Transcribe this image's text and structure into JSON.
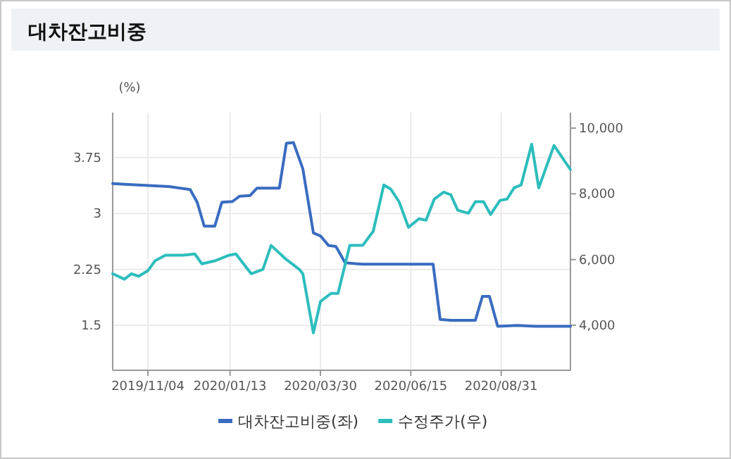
{
  "chart_data": {
    "type": "line",
    "title": "대차잔고비중",
    "ylabel": "(%)",
    "legend": "bottom",
    "grid": true,
    "marker": "none",
    "line_style": "solid",
    "xlim": [
      "2019-10-05",
      "2020-10-29"
    ],
    "xticks": [
      {
        "value": "2019-11-04",
        "label": "2019/11/04"
      },
      {
        "value": "2020-01-13",
        "label": "2020/01/13"
      },
      {
        "value": "2020-03-30",
        "label": "2020/03/30"
      },
      {
        "value": "2020-06-15",
        "label": "2020/06/15"
      },
      {
        "value": "2020-08-31",
        "label": "2020/08/31"
      }
    ],
    "ylim": [
      0.9,
      4.35
    ],
    "yticks": [
      1.5,
      2.25,
      3,
      3.75
    ],
    "y2lim": [
      2630,
      10470
    ],
    "y2ticks": [
      {
        "value": 4000,
        "label": "4,000"
      },
      {
        "value": 6000,
        "label": "6,000"
      },
      {
        "value": 8000,
        "label": "8,000"
      },
      {
        "value": 10000,
        "label": "10,000"
      }
    ],
    "series": [
      {
        "name": "대차잔고비중(좌)",
        "color": "#3a6cc0",
        "x": [
          "2019-10-05",
          "2019-10-15",
          "2019-11-22",
          "2019-12-10",
          "2019-12-16",
          "2019-12-22",
          "2019-12-31",
          "2020-01-06",
          "2020-01-15",
          "2020-01-21",
          "2020-01-30",
          "2020-02-05",
          "2020-02-24",
          "2020-03-01",
          "2020-03-07",
          "2020-03-15",
          "2020-03-24",
          "2020-03-30",
          "2020-04-06",
          "2020-04-12",
          "2020-04-14",
          "2020-04-20",
          "2020-05-05",
          "2020-07-04",
          "2020-07-10",
          "2020-07-19",
          "2020-08-09",
          "2020-08-15",
          "2020-08-21",
          "2020-08-28",
          "2020-09-14",
          "2020-09-29",
          "2020-10-29"
        ],
        "values": [
          3.4,
          3.39,
          3.36,
          3.32,
          3.15,
          2.83,
          2.83,
          3.15,
          3.16,
          3.23,
          3.24,
          3.34,
          3.34,
          3.94,
          3.95,
          3.6,
          2.74,
          2.7,
          2.57,
          2.56,
          2.51,
          2.34,
          2.32,
          2.32,
          1.58,
          1.57,
          1.57,
          1.89,
          1.89,
          1.49,
          1.5,
          1.49,
          1.49
        ]
      },
      {
        "name": "수정주가(우)",
        "color": "#2dbdbd",
        "axis": "y2",
        "x": [
          "2019-10-05",
          "2019-10-15",
          "2019-10-21",
          "2019-10-27",
          "2019-11-04",
          "2019-11-10",
          "2019-11-19",
          "2019-12-04",
          "2019-12-14",
          "2019-12-20",
          "2019-12-31",
          "2020-01-12",
          "2020-01-18",
          "2020-01-31",
          "2020-02-10",
          "2020-02-17",
          "2020-03-01",
          "2020-03-12",
          "2020-03-15",
          "2020-03-24",
          "2020-03-30",
          "2020-04-08",
          "2020-04-14",
          "2020-04-24",
          "2020-05-05",
          "2020-05-14",
          "2020-05-23",
          "2020-05-29",
          "2020-06-05",
          "2020-06-13",
          "2020-06-22",
          "2020-06-28",
          "2020-07-05",
          "2020-07-13",
          "2020-07-19",
          "2020-07-25",
          "2020-08-03",
          "2020-08-09",
          "2020-08-16",
          "2020-08-22",
          "2020-08-30",
          "2020-09-05",
          "2020-09-11",
          "2020-09-17",
          "2020-09-26",
          "2020-10-02",
          "2020-10-15",
          "2020-10-29"
        ],
        "values": [
          5570,
          5400,
          5570,
          5490,
          5660,
          5960,
          6130,
          6130,
          6170,
          5870,
          5960,
          6130,
          6170,
          5570,
          5700,
          6430,
          6000,
          5700,
          5570,
          3770,
          4720,
          4970,
          4970,
          6430,
          6430,
          6860,
          8270,
          8140,
          7760,
          6980,
          7240,
          7200,
          7840,
          8050,
          7970,
          7500,
          7410,
          7760,
          7760,
          7370,
          7800,
          7840,
          8180,
          8270,
          9510,
          8180,
          9470,
          8740
        ]
      }
    ]
  }
}
